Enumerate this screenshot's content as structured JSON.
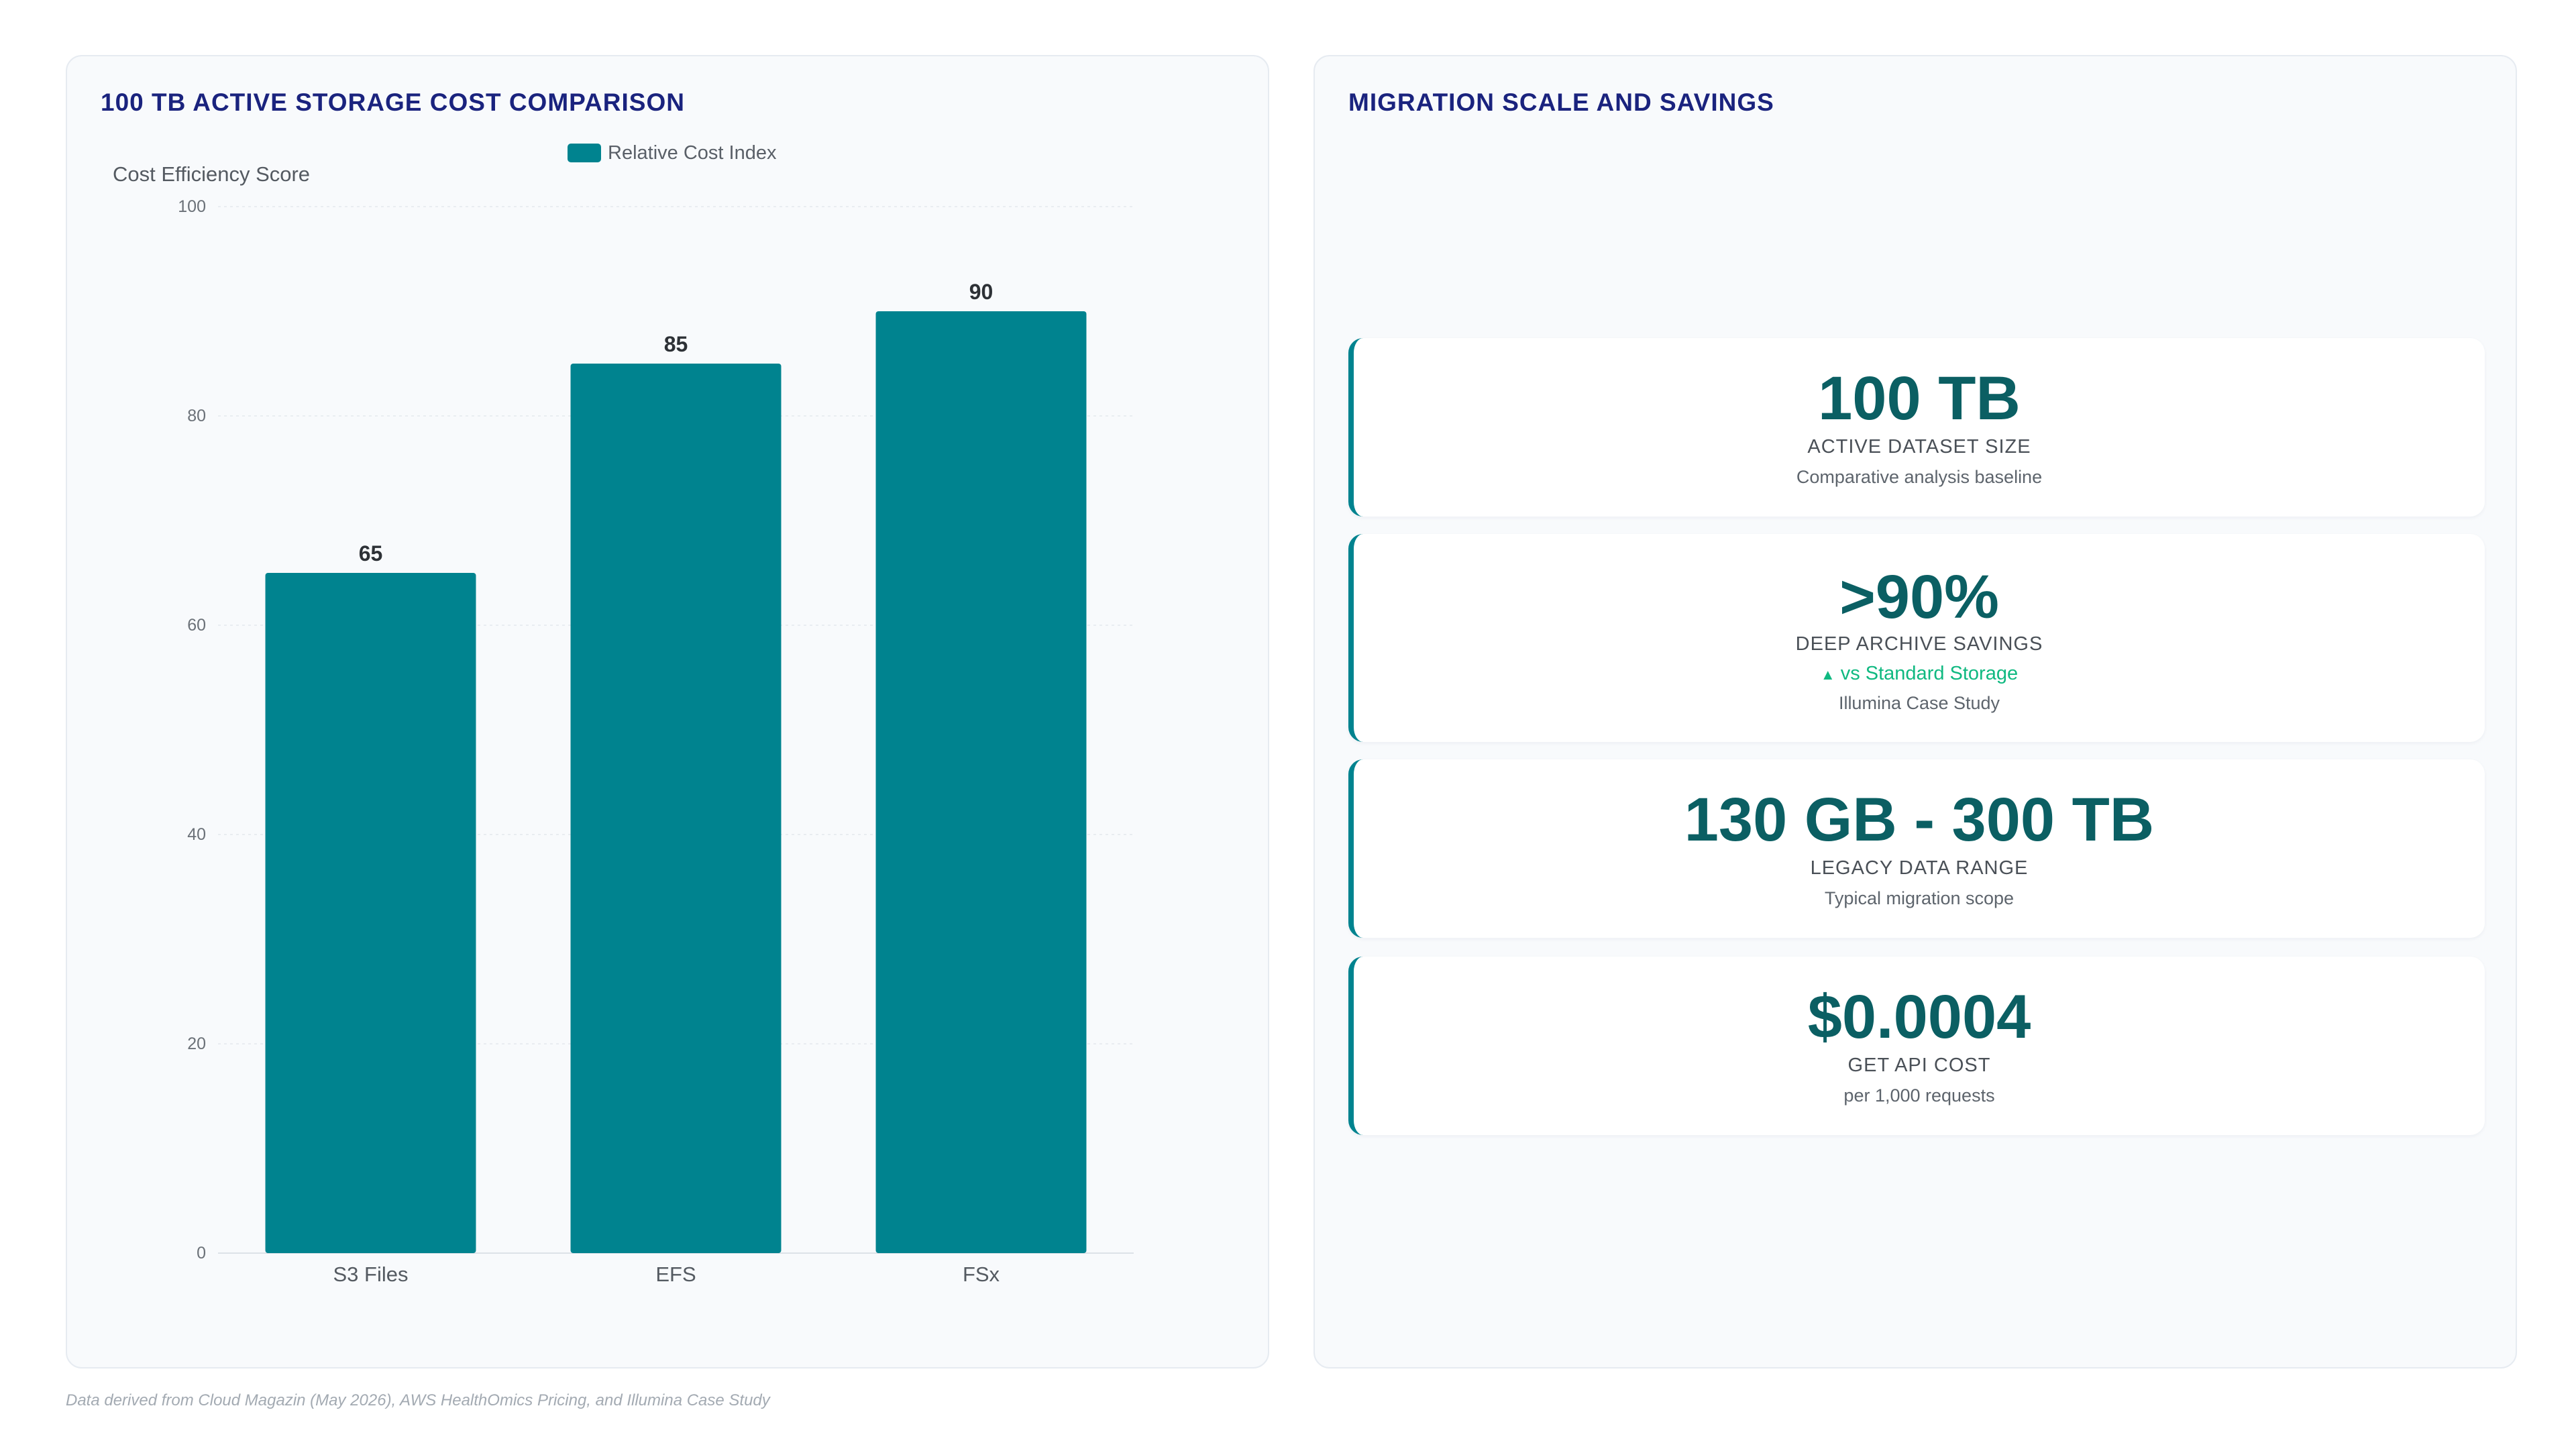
{
  "left_panel": {
    "title": "100 TB ACTIVE STORAGE COST COMPARISON"
  },
  "chart_data": {
    "type": "bar",
    "categories": [
      "S3 Files",
      "EFS",
      "FSx"
    ],
    "series": [
      {
        "name": "Relative Cost Index",
        "values": [
          65,
          85,
          90
        ]
      }
    ],
    "ylabel": "Cost Efficiency Score",
    "xlabel": "",
    "ylim": [
      0,
      100
    ],
    "yticks": [
      0,
      20,
      40,
      60,
      80,
      100
    ],
    "grid": true,
    "legend_position": "top-center",
    "data_labels": true,
    "bar_color": "#00838f"
  },
  "right_panel": {
    "title": "MIGRATION SCALE AND SAVINGS",
    "kpis": [
      {
        "value": "100 TB",
        "label": "ACTIVE DATASET SIZE",
        "sub": "Comparative analysis baseline"
      },
      {
        "value": ">90%",
        "label": "DEEP ARCHIVE SAVINGS",
        "trend_icon": "triangle-up-icon",
        "trend": "vs Standard Storage",
        "sub": "Illumina Case Study"
      },
      {
        "value": "130 GB - 300 TB",
        "label": "LEGACY DATA RANGE",
        "sub": "Typical migration scope"
      },
      {
        "value": "$0.0004",
        "label": "GET API COST",
        "sub": "per 1,000 requests"
      }
    ]
  },
  "footer": {
    "note": "Data derived from Cloud Magazin (May 2026), AWS HealthOmics Pricing, and Illumina Case Study"
  },
  "colors": {
    "title": "#1a237e",
    "accent": "#00838f",
    "kpi_value": "#0b5f63",
    "trend_up": "#10b981"
  }
}
